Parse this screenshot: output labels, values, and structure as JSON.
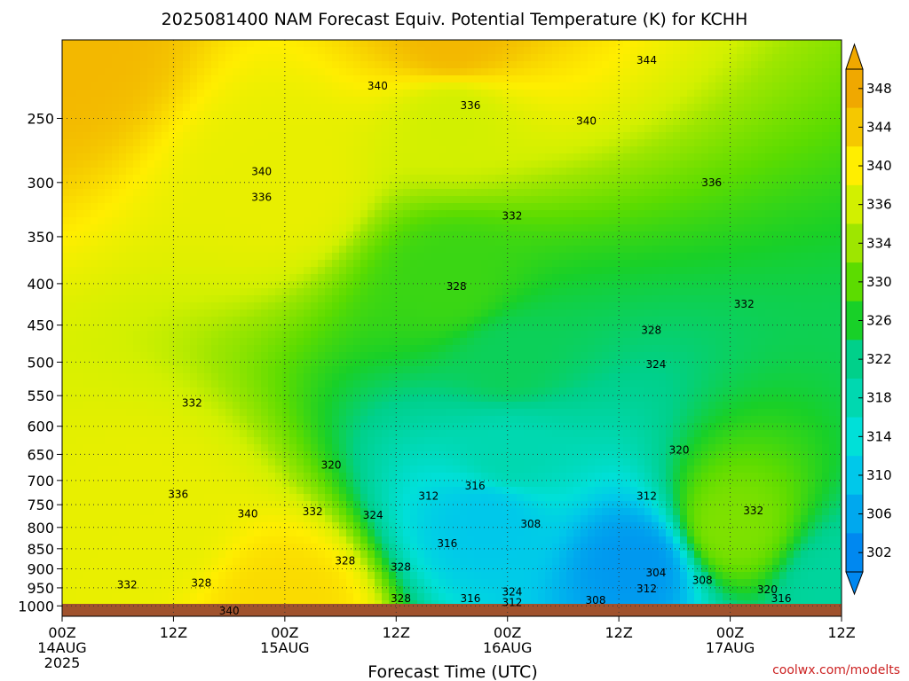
{
  "title": "2025081400 NAM Forecast Equiv. Potential Temperature (K) for KCHH",
  "credit": "coolwx.com/modelts",
  "colors": {
    "ground": "#a0522d",
    "credit": "#cc2222"
  },
  "chart_data": {
    "type": "heatmap",
    "title": "2025081400 NAM Forecast Equiv. Potential Temperature (K) for KCHH",
    "xlabel": "Forecast Time (UTC)",
    "ylabel": "",
    "x_hours_range": [
      0,
      84
    ],
    "x_ticks": [
      {
        "hour": 0,
        "lines": [
          "00Z",
          "14AUG",
          "2025"
        ]
      },
      {
        "hour": 12,
        "lines": [
          "12Z"
        ]
      },
      {
        "hour": 24,
        "lines": [
          "00Z",
          "15AUG"
        ]
      },
      {
        "hour": 36,
        "lines": [
          "12Z"
        ]
      },
      {
        "hour": 48,
        "lines": [
          "00Z",
          "16AUG"
        ]
      },
      {
        "hour": 60,
        "lines": [
          "12Z"
        ]
      },
      {
        "hour": 72,
        "lines": [
          "00Z",
          "17AUG"
        ]
      },
      {
        "hour": 84,
        "lines": [
          "12Z"
        ]
      }
    ],
    "y_pressure_range_hPa": [
      1030,
      200
    ],
    "y_scale": "log",
    "y_ticks": [
      250,
      300,
      350,
      400,
      450,
      500,
      550,
      600,
      650,
      700,
      750,
      800,
      850,
      900,
      950,
      1000
    ],
    "grid": true,
    "colorbar": {
      "labels": [
        348,
        344,
        340,
        336,
        334,
        330,
        326,
        322,
        318,
        314,
        310,
        306,
        302
      ],
      "colors": [
        "#f0a800",
        "#f5c800",
        "#ffee00",
        "#d2f000",
        "#9ee600",
        "#5cdc00",
        "#18d028",
        "#00d08a",
        "#00d8b0",
        "#00e0d8",
        "#00c8ea",
        "#00a8ee",
        "#0088f0"
      ]
    },
    "field_samples": [
      {
        "hour": 0,
        "p": 200,
        "theta_e": 346
      },
      {
        "hour": 42,
        "p": 200,
        "theta_e": 346
      },
      {
        "hour": 24,
        "p": 300,
        "theta_e": 338
      },
      {
        "hour": 42,
        "p": 250,
        "theta_e": 336
      },
      {
        "hour": 42,
        "p": 400,
        "theta_e": 328
      },
      {
        "hour": 48,
        "p": 500,
        "theta_e": 324
      },
      {
        "hour": 48,
        "p": 650,
        "theta_e": 318
      },
      {
        "hour": 46,
        "p": 780,
        "theta_e": 310
      },
      {
        "hour": 62,
        "p": 890,
        "theta_e": 304
      },
      {
        "hour": 10,
        "p": 800,
        "theta_e": 338
      },
      {
        "hour": 24,
        "p": 1000,
        "theta_e": 342
      },
      {
        "hour": 72,
        "p": 800,
        "theta_e": 332
      },
      {
        "hour": 84,
        "p": 950,
        "theta_e": 320
      }
    ],
    "contour_labels": [
      {
        "text": "344",
        "hour": 63,
        "p": 212
      },
      {
        "text": "340",
        "hour": 34,
        "p": 228
      },
      {
        "text": "336",
        "hour": 44,
        "p": 241
      },
      {
        "text": "340",
        "hour": 56.5,
        "p": 252
      },
      {
        "text": "340",
        "hour": 21.5,
        "p": 291
      },
      {
        "text": "336",
        "hour": 21.5,
        "p": 313
      },
      {
        "text": "336",
        "hour": 70,
        "p": 300
      },
      {
        "text": "332",
        "hour": 48.5,
        "p": 330
      },
      {
        "text": "328",
        "hour": 42.5,
        "p": 403
      },
      {
        "text": "332",
        "hour": 73.5,
        "p": 424
      },
      {
        "text": "328",
        "hour": 63.5,
        "p": 457
      },
      {
        "text": "324",
        "hour": 64,
        "p": 503
      },
      {
        "text": "332",
        "hour": 14,
        "p": 562
      },
      {
        "text": "320",
        "hour": 66.5,
        "p": 642
      },
      {
        "text": "320",
        "hour": 29,
        "p": 670
      },
      {
        "text": "316",
        "hour": 44.5,
        "p": 711
      },
      {
        "text": "312",
        "hour": 39.5,
        "p": 732
      },
      {
        "text": "312",
        "hour": 63,
        "p": 732
      },
      {
        "text": "336",
        "hour": 12.5,
        "p": 728
      },
      {
        "text": "340",
        "hour": 20,
        "p": 770
      },
      {
        "text": "332",
        "hour": 27,
        "p": 765
      },
      {
        "text": "324",
        "hour": 33.5,
        "p": 773
      },
      {
        "text": "308",
        "hour": 50.5,
        "p": 792
      },
      {
        "text": "332",
        "hour": 74.5,
        "p": 763
      },
      {
        "text": "316",
        "hour": 41.5,
        "p": 838
      },
      {
        "text": "328",
        "hour": 30.5,
        "p": 880
      },
      {
        "text": "328",
        "hour": 36.5,
        "p": 895
      },
      {
        "text": "304",
        "hour": 64,
        "p": 910
      },
      {
        "text": "308",
        "hour": 69,
        "p": 930
      },
      {
        "text": "332",
        "hour": 7,
        "p": 942
      },
      {
        "text": "328",
        "hour": 15,
        "p": 937
      },
      {
        "text": "312",
        "hour": 63,
        "p": 952
      },
      {
        "text": "320",
        "hour": 76,
        "p": 955
      },
      {
        "text": "324",
        "hour": 48.5,
        "p": 961
      },
      {
        "text": "328",
        "hour": 36.5,
        "p": 979
      },
      {
        "text": "316",
        "hour": 44,
        "p": 979
      },
      {
        "text": "316",
        "hour": 77.5,
        "p": 979
      },
      {
        "text": "308",
        "hour": 57.5,
        "p": 984
      },
      {
        "text": "312",
        "hour": 48.5,
        "p": 990
      },
      {
        "text": "340",
        "hour": 18,
        "p": 1015
      }
    ]
  }
}
